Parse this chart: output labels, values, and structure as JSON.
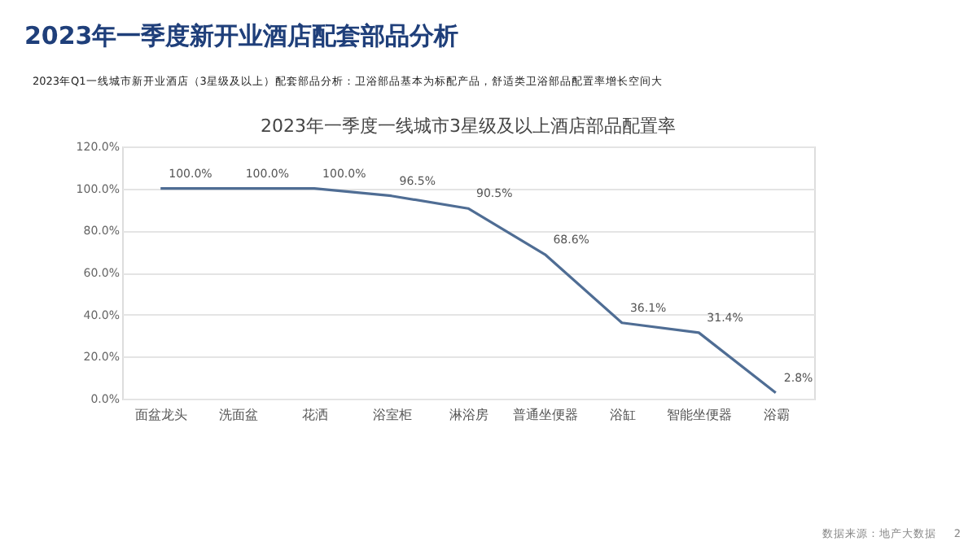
{
  "chart_data": {
    "type": "line",
    "title": "2023年一季度新开业酒店配套部品分析",
    "subtitle": "2023年Q1一线城市新开业酒店（3星级及以上）配套部品分析：卫浴部品基本为标配产品，舒适类卫浴部品配置率增长空间大",
    "annotations": [
      "2023年一季度一线城市3星级及以上酒店部品配置率",
      "数据来源：地产大数据",
      "2"
    ],
    "categories": [
      "面盆龙头",
      "洗面盆",
      "花洒",
      "浴室柜",
      "淋浴房",
      "普通坐便器",
      "浴缸",
      "智能坐便器",
      "浴霸"
    ],
    "series": [
      {
        "color": "#4f6d94",
        "values": [
          100,
          100,
          100,
          96.5,
          90.5,
          68.6,
          36.1,
          31.4,
          2.8
        ],
        "value_labels": [
          "100.0%",
          "100.0%",
          "100.0%",
          "96.5%",
          "90.5%",
          "68.6%",
          "36.1%",
          "31.4%",
          "2.8%"
        ]
      }
    ],
    "ylim": [
      0,
      120
    ],
    "yticks": [
      {
        "value": 0,
        "label": "0.0%"
      },
      {
        "value": 20,
        "label": "20.0%"
      },
      {
        "value": 40,
        "label": "40.0%"
      },
      {
        "value": 60,
        "label": "60.0%"
      },
      {
        "value": 80,
        "label": "80.0%"
      },
      {
        "value": 100,
        "label": "100.0%"
      },
      {
        "value": 120,
        "label": "120.0%"
      }
    ],
    "grid": "y",
    "marker": "none",
    "line_style": "solid"
  }
}
